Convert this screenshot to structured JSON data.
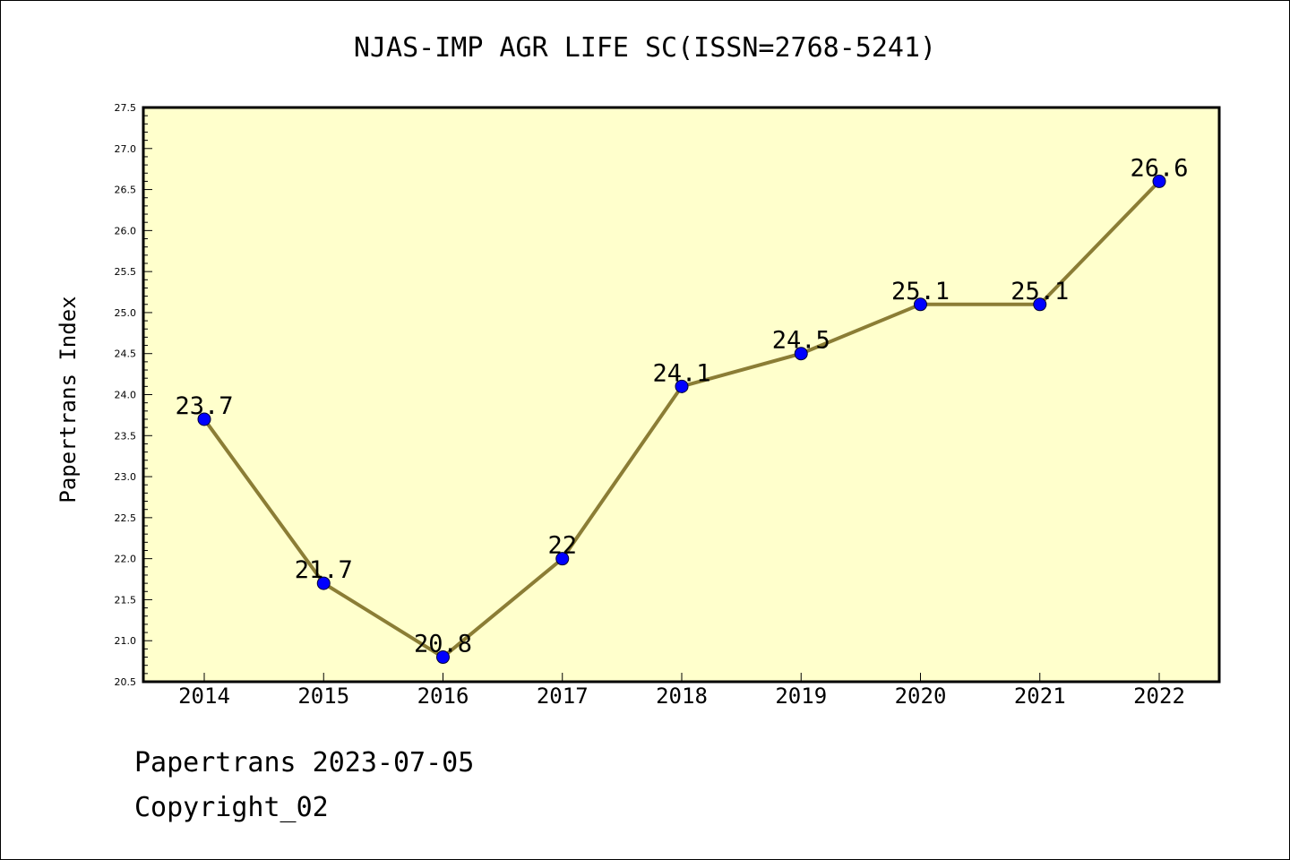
{
  "chart_data": {
    "type": "line",
    "title": "NJAS-IMP AGR LIFE SC(ISSN=2768-5241)",
    "xlabel": "",
    "ylabel": "Papertrans Index",
    "categories": [
      "2014",
      "2015",
      "2016",
      "2017",
      "2018",
      "2019",
      "2020",
      "2021",
      "2022"
    ],
    "series": [
      {
        "values": [
          23.7,
          21.7,
          20.8,
          22.0,
          24.1,
          24.5,
          25.1,
          25.1,
          26.6
        ],
        "point_labels": [
          "23.7",
          "21.7",
          "20.8",
          "22",
          "24.1",
          "24.5",
          "25.1",
          "25.1",
          "26.6"
        ]
      }
    ],
    "ylim": [
      20.5,
      27.5
    ],
    "yticks": [
      "20.5",
      "21.0",
      "21.5",
      "22.0",
      "22.5",
      "23.0",
      "23.5",
      "24.0",
      "24.5",
      "25.0",
      "25.5",
      "26.0",
      "26.5",
      "27.0",
      "27.5"
    ],
    "grid": false,
    "plot_background": "#ffffcc",
    "line_color": "#8b7d35",
    "marker_color": "#0000ff"
  },
  "footer": {
    "line1": "Papertrans 2023-07-05",
    "line2": "Copyright_02"
  }
}
